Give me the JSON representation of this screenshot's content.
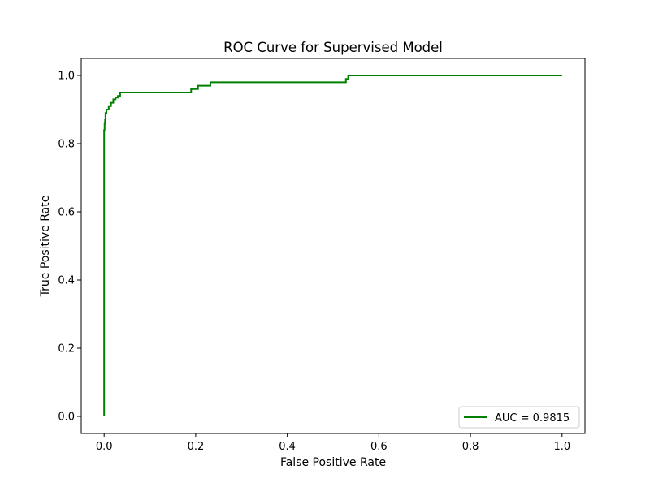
{
  "chart_data": {
    "type": "line",
    "title": "ROC Curve for Supervised Model",
    "xlabel": "False Positive Rate",
    "ylabel": "True Positive Rate",
    "xlim": [
      -0.05,
      1.05
    ],
    "ylim": [
      -0.05,
      1.05
    ],
    "xticks": [
      "0.0",
      "0.2",
      "0.4",
      "0.6",
      "0.8",
      "1.0"
    ],
    "yticks": [
      "0.0",
      "0.2",
      "0.4",
      "0.6",
      "0.8",
      "1.0"
    ],
    "grid": false,
    "legend_position": "lower-right",
    "series": [
      {
        "name": "AUC = 0.9815",
        "color": "#008000",
        "step": true,
        "x": [
          0.0,
          0.0,
          0.001,
          0.002,
          0.003,
          0.005,
          0.01,
          0.015,
          0.02,
          0.025,
          0.03,
          0.035,
          0.19,
          0.205,
          0.232,
          0.528,
          0.533,
          1.0
        ],
        "y": [
          0.0,
          0.84,
          0.86,
          0.87,
          0.89,
          0.9,
          0.91,
          0.92,
          0.93,
          0.935,
          0.94,
          0.95,
          0.96,
          0.97,
          0.98,
          0.99,
          1.0,
          1.0
        ]
      }
    ]
  }
}
